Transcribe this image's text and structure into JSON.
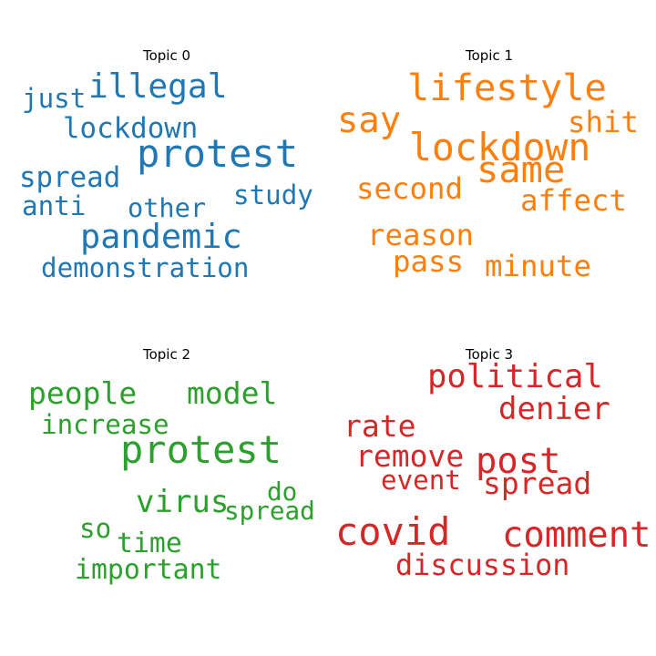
{
  "chart_data": [
    {
      "type": "wordcloud",
      "title": "Topic 0",
      "color": "#1f77b4",
      "words": [
        {
          "text": "protest",
          "weight": 1.0
        },
        {
          "text": "illegal",
          "weight": 0.82
        },
        {
          "text": "pandemic",
          "weight": 0.84
        },
        {
          "text": "lockdown",
          "weight": 0.65
        },
        {
          "text": "just",
          "weight": 0.6
        },
        {
          "text": "spread",
          "weight": 0.65
        },
        {
          "text": "study",
          "weight": 0.6
        },
        {
          "text": "other",
          "weight": 0.58
        },
        {
          "text": "anti",
          "weight": 0.6
        },
        {
          "text": "demonstration",
          "weight": 0.6
        }
      ]
    },
    {
      "type": "wordcloud",
      "title": "Topic 1",
      "color": "#ff7f0e",
      "words": [
        {
          "text": "lifestyle",
          "weight": 0.95
        },
        {
          "text": "lockdown",
          "weight": 0.98
        },
        {
          "text": "say",
          "weight": 0.9
        },
        {
          "text": "same",
          "weight": 0.95
        },
        {
          "text": "shit",
          "weight": 0.7
        },
        {
          "text": "second",
          "weight": 0.7
        },
        {
          "text": "affect",
          "weight": 0.7
        },
        {
          "text": "reason",
          "weight": 0.7
        },
        {
          "text": "pass",
          "weight": 0.7
        },
        {
          "text": "minute",
          "weight": 0.7
        }
      ]
    },
    {
      "type": "wordcloud",
      "title": "Topic 2",
      "color": "#2ca02c",
      "words": [
        {
          "text": "protest",
          "weight": 1.0
        },
        {
          "text": "people",
          "weight": 0.72
        },
        {
          "text": "model",
          "weight": 0.72
        },
        {
          "text": "increase",
          "weight": 0.6
        },
        {
          "text": "virus",
          "weight": 0.75
        },
        {
          "text": "do",
          "weight": 0.55
        },
        {
          "text": "spread",
          "weight": 0.55
        },
        {
          "text": "so",
          "weight": 0.6
        },
        {
          "text": "time",
          "weight": 0.62
        },
        {
          "text": "important",
          "weight": 0.62
        }
      ]
    },
    {
      "type": "wordcloud",
      "title": "Topic 3",
      "color": "#d62728",
      "words": [
        {
          "text": "covid",
          "weight": 1.0
        },
        {
          "text": "comment",
          "weight": 0.9
        },
        {
          "text": "post",
          "weight": 0.9
        },
        {
          "text": "political",
          "weight": 0.8
        },
        {
          "text": "denier",
          "weight": 0.75
        },
        {
          "text": "rate",
          "weight": 0.72
        },
        {
          "text": "remove",
          "weight": 0.72
        },
        {
          "text": "spread",
          "weight": 0.72
        },
        {
          "text": "event",
          "weight": 0.6
        },
        {
          "text": "discussion",
          "weight": 0.68
        }
      ]
    }
  ]
}
